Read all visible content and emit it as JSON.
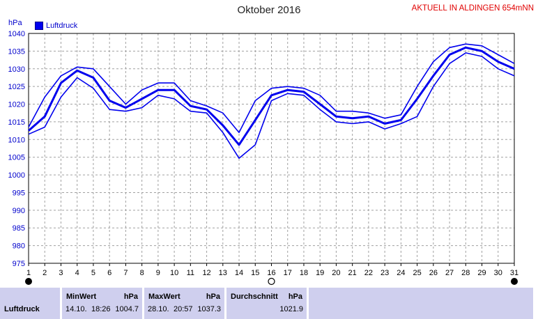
{
  "header": {
    "title": "Oktober 2016",
    "station": "AKTUELL IN ALDINGEN 654mNN",
    "y_unit": "hPa"
  },
  "legend": {
    "label": "Luftdruck"
  },
  "colors": {
    "line": "#0000ee",
    "grid": "#a0a0a0",
    "axis_text": "#0000cc",
    "panel": "#cfcfee"
  },
  "chart_data": {
    "type": "line",
    "title": "Oktober 2016",
    "ylabel": "hPa",
    "xlabel": "",
    "xlim": [
      1,
      31
    ],
    "ylim": [
      975,
      1040
    ],
    "x_ticks": [
      1,
      2,
      3,
      4,
      5,
      6,
      7,
      8,
      9,
      10,
      11,
      12,
      13,
      14,
      15,
      16,
      17,
      18,
      19,
      20,
      21,
      22,
      23,
      24,
      25,
      26,
      27,
      28,
      29,
      30,
      31
    ],
    "y_ticks": [
      975,
      980,
      985,
      990,
      995,
      1000,
      1005,
      1010,
      1015,
      1020,
      1025,
      1030,
      1035,
      1040
    ],
    "grid": true,
    "legend_position": "top-left",
    "x": [
      1,
      2,
      3,
      4,
      5,
      6,
      7,
      8,
      9,
      10,
      11,
      12,
      13,
      14,
      15,
      16,
      17,
      18,
      19,
      20,
      21,
      22,
      23,
      24,
      25,
      26,
      27,
      28,
      29,
      30,
      31
    ],
    "series": [
      {
        "name": "Luftdruck",
        "role": "max",
        "values": [
          1013.5,
          1022,
          1028,
          1030.5,
          1030,
          1025,
          1020,
          1024,
          1026,
          1026,
          1021,
          1019.5,
          1017.5,
          1012,
          1021,
          1024.5,
          1025,
          1024.5,
          1022.5,
          1018,
          1018,
          1017.5,
          1016,
          1017,
          1025,
          1032,
          1036,
          1037,
          1036.5,
          1034,
          1031.5
        ]
      },
      {
        "name": "Luftdruck",
        "role": "mean",
        "values": [
          1012.5,
          1016.5,
          1026,
          1029.5,
          1027.5,
          1021,
          1019,
          1021.5,
          1024,
          1024,
          1019.5,
          1018.5,
          1014,
          1008.5,
          1015.5,
          1022.5,
          1024,
          1023.5,
          1020,
          1016.5,
          1016,
          1016.5,
          1014.5,
          1015.5,
          1021.5,
          1028,
          1034,
          1036,
          1035,
          1032,
          1030
        ]
      },
      {
        "name": "Luftdruck",
        "role": "min",
        "values": [
          1011.5,
          1013.5,
          1022,
          1027.5,
          1024.5,
          1018.5,
          1018,
          1019,
          1022.5,
          1021.5,
          1018,
          1017.5,
          1012,
          1004.7,
          1008.5,
          1021,
          1023,
          1022.5,
          1018.5,
          1015,
          1014.5,
          1015,
          1013,
          1014.5,
          1016.5,
          1025,
          1031.5,
          1034.5,
          1033.5,
          1030,
          1028
        ]
      }
    ],
    "period_markers": [
      {
        "x": 1,
        "symbol": "new-moon"
      },
      {
        "x": 16,
        "symbol": "full-moon"
      },
      {
        "x": 31,
        "symbol": "new-moon"
      }
    ]
  },
  "stats": {
    "name": "Luftdruck",
    "min": {
      "label": "MinWert",
      "unit": "hPa",
      "date": "14.10.",
      "time": "18:26",
      "value": "1004.7"
    },
    "max": {
      "label": "MaxWert",
      "unit": "hPa",
      "date": "28.10.",
      "time": "20:57",
      "value": "1037.3"
    },
    "avg": {
      "label": "Durchschnitt",
      "unit": "hPa",
      "value": "1021.9"
    }
  }
}
